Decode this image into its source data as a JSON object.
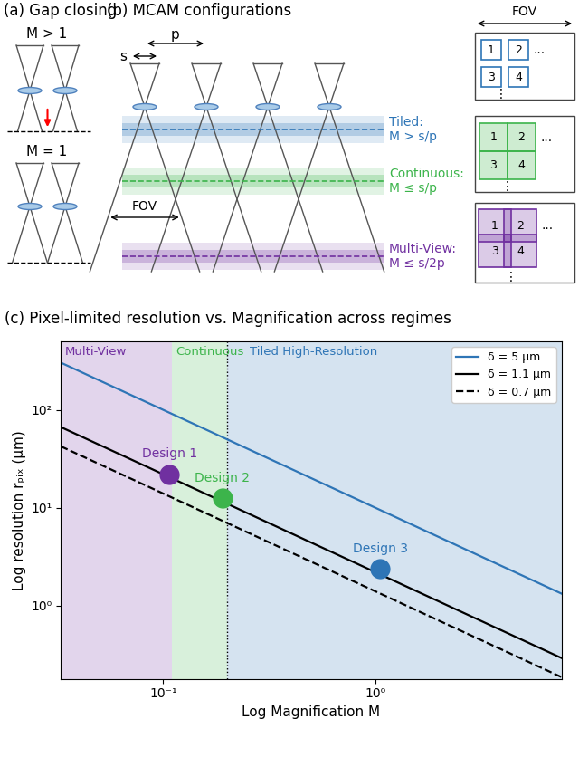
{
  "panel_a": {
    "title": "(a) Gap closing",
    "cases": [
      {
        "label": "M > 1"
      },
      {
        "label": "M = 1"
      }
    ]
  },
  "panel_b": {
    "title": "(b) MCAM configurations",
    "pitch_label": "p",
    "aperture_label": "s",
    "fov_label": "FOV",
    "regimes": [
      {
        "name": "Tiled:",
        "condition": "M > s/p",
        "color": "#2e75b6"
      },
      {
        "name": "Continuous:",
        "condition": "M ≤ s/p",
        "color": "#3cb44b"
      },
      {
        "name": "Multi-View:",
        "condition": "M ≤ s/2p",
        "color": "#7030a0"
      }
    ],
    "layout_title": "FOV",
    "tile_labels": [
      "1",
      "2",
      "3",
      "4"
    ],
    "more_horizontal": "...",
    "more_vertical": "⋮"
  },
  "chart_data": {
    "type": "line",
    "log": true,
    "title": "(c) Pixel-limited resolution vs. Magnification across regimes",
    "x_label": "Log Magnification M",
    "y_label": "Log resolution rₚᵢₓ (μm)",
    "xlim": [
      0.033,
      7.5
    ],
    "ylim": [
      0.18,
      500
    ],
    "xticks": [
      {
        "value": 0.1,
        "label": "10⁻¹"
      },
      {
        "value": 1,
        "label": "10⁰"
      }
    ],
    "yticks": [
      {
        "value": 1,
        "label": "10⁰"
      },
      {
        "value": 10,
        "label": "10¹"
      },
      {
        "value": 100,
        "label": "10²"
      }
    ],
    "regions": [
      {
        "name": "Multi-View",
        "x_range": [
          0.033,
          0.11
        ],
        "color": "#7030a0"
      },
      {
        "name": "Continuous",
        "x_range": [
          0.11,
          0.2
        ],
        "color": "#3cb44b"
      },
      {
        "name": "Tiled High-Resolution",
        "x_range": [
          0.2,
          7.5
        ],
        "color": "#2e75b6"
      }
    ],
    "boundary": 0.2,
    "series": [
      {
        "name": "δ = 5 μm",
        "color": "#2e75b6",
        "line_style": "solid",
        "x": [
          0.033,
          7.5
        ],
        "values": [
          303,
          1.33
        ]
      },
      {
        "name": "δ = 1.1 μm",
        "color": "#000000",
        "line_style": "solid",
        "x": [
          0.033,
          7.5
        ],
        "values": [
          66.7,
          0.293
        ]
      },
      {
        "name": "δ = 0.7 μm",
        "color": "#000000",
        "line_style": "dashed",
        "x": [
          0.033,
          7.5
        ],
        "values": [
          42.4,
          0.187
        ]
      }
    ],
    "points": [
      {
        "label": "Design 1",
        "x": 0.107,
        "y": 22,
        "color": "#7030a0",
        "marker": "o"
      },
      {
        "label": "Design 2",
        "x": 0.19,
        "y": 12.5,
        "color": "#3cb44b",
        "marker": "o"
      },
      {
        "label": "Design 3",
        "x": 1.05,
        "y": 2.4,
        "color": "#2e75b6",
        "marker": "o"
      }
    ],
    "legend": "upper right",
    "grid": false
  }
}
